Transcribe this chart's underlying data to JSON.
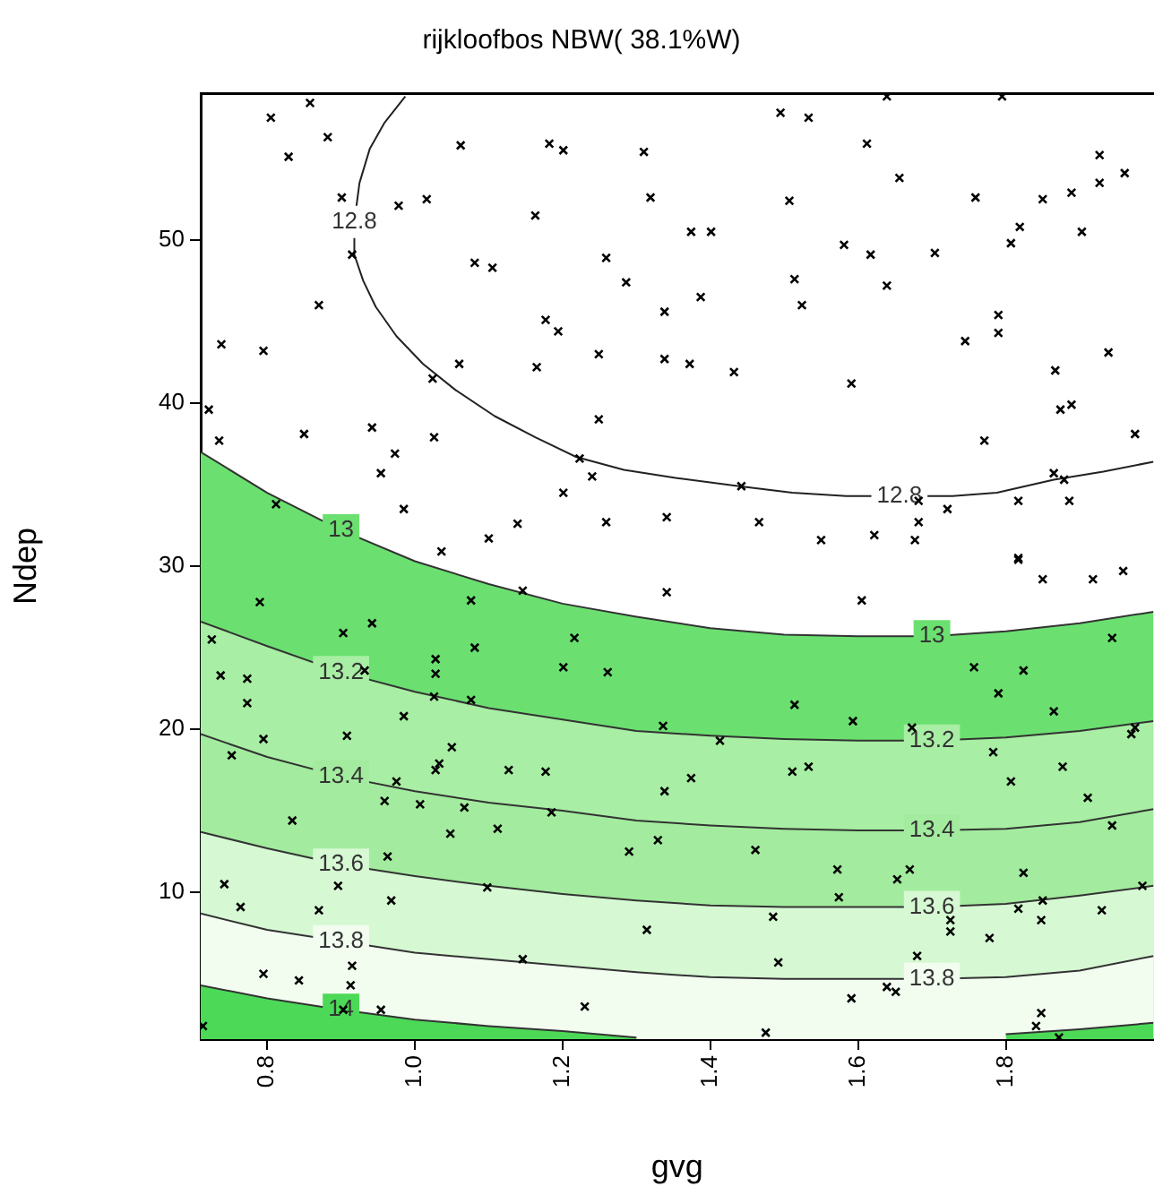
{
  "chart_data": {
    "type": "area",
    "title": "rijkloofbos NBW( 38.1%W)",
    "xlabel": "gvg",
    "ylabel": "Ndep",
    "xlim": [
      0.71,
      2.0
    ],
    "ylim": [
      1,
      59
    ],
    "xticks": [
      0.8,
      {
        "value": 1,
        "label": "1.0"
      },
      1.2,
      1.4,
      1.6,
      1.8
    ],
    "yticks": [
      10,
      20,
      30,
      40,
      50
    ],
    "grid": false,
    "legend": false,
    "x": [
      0.71,
      0.8,
      0.9,
      1.0,
      1.1,
      1.2,
      1.3,
      1.4,
      1.5,
      1.6,
      1.7,
      1.8,
      1.9,
      2.0
    ],
    "series": [
      {
        "name": "12.8",
        "type": "line",
        "color": "#222222",
        "x": [
          0.987,
          0.959,
          0.939,
          0.925,
          0.918,
          0.918,
          0.93,
          0.947,
          0.975,
          1.011,
          1.055,
          1.108,
          1.163,
          1.218,
          1.283,
          1.355,
          1.439,
          1.511,
          1.584,
          1.656,
          1.728,
          1.788,
          1.865,
          1.932,
          2.0
        ],
        "values": [
          58.8,
          57.2,
          55.6,
          53.5,
          51.1,
          49.1,
          47.5,
          45.9,
          44.1,
          42.4,
          40.8,
          39.2,
          37.9,
          36.7,
          35.9,
          35.4,
          34.9,
          34.5,
          34.3,
          34.3,
          34.3,
          34.5,
          35.3,
          35.8,
          36.4
        ]
      },
      {
        "name": "13",
        "color": "#6be070",
        "values": [
          37.0,
          34.5,
          32.2,
          30.3,
          28.9,
          27.7,
          26.9,
          26.2,
          25.8,
          25.7,
          25.7,
          26.0,
          26.5,
          27.2
        ]
      },
      {
        "name": "13.2",
        "color": "#a8eea4",
        "values": [
          26.6,
          25.1,
          23.5,
          22.3,
          21.3,
          20.6,
          19.9,
          19.6,
          19.4,
          19.3,
          19.3,
          19.5,
          19.9,
          20.5
        ]
      },
      {
        "name": "13.4",
        "color": "#a3ec9f",
        "values": [
          19.7,
          18.3,
          17.1,
          16.2,
          15.5,
          15.0,
          14.4,
          14.1,
          13.9,
          13.8,
          13.8,
          13.9,
          14.3,
          15.1
        ]
      },
      {
        "name": "13.6",
        "color": "#d6f9d3",
        "values": [
          13.7,
          12.7,
          11.7,
          11.0,
          10.4,
          9.9,
          9.5,
          9.2,
          9.1,
          9.1,
          9.1,
          9.3,
          9.8,
          10.4
        ]
      },
      {
        "name": "13.8",
        "color": "#f2fdf0",
        "values": [
          8.7,
          7.7,
          7.0,
          6.3,
          5.9,
          5.5,
          5.1,
          4.8,
          4.7,
          4.7,
          4.7,
          4.8,
          5.2,
          6.1
        ]
      },
      {
        "name": "14",
        "color": "#4cd957",
        "values": [
          4.3,
          3.5,
          2.8,
          2.2,
          1.8,
          1.5,
          1.1,
          null,
          null,
          null,
          null,
          1.3,
          1.6,
          2.0
        ]
      },
      {
        "type": "scatter",
        "color": "#000000",
        "marker": "cross",
        "x": [
          0.805,
          0.858,
          0.882,
          0.829,
          1.062,
          1.182,
          1.201,
          1.31,
          0.901,
          0.978,
          1.016,
          1.163,
          1.319,
          0.915,
          1.081,
          1.105,
          1.259,
          1.286,
          0.87,
          1.338,
          0.738,
          0.795,
          1.177,
          1.194,
          1.06,
          1.165,
          1.249,
          1.338,
          1.024,
          0.721,
          0.735,
          0.85,
          0.942,
          1.026,
          1.249,
          0.973,
          0.954,
          1.223,
          1.24,
          1.201,
          0.812,
          0.985,
          1.139,
          1.259,
          1.341,
          1.1,
          1.036,
          1.495,
          1.533,
          1.639,
          1.795,
          1.612,
          1.927,
          1.961,
          1.656,
          1.507,
          1.759,
          1.85,
          1.889,
          1.927,
          1.374,
          1.401,
          1.819,
          1.807,
          1.903,
          1.581,
          1.617,
          1.704,
          1.514,
          1.639,
          1.387,
          1.524,
          1.79,
          1.79,
          1.745,
          1.939,
          1.372,
          1.432,
          1.591,
          1.867,
          1.874,
          1.889,
          1.975,
          1.771,
          1.442,
          1.865,
          1.879,
          1.682,
          1.721,
          1.817,
          1.886,
          1.466,
          1.682,
          1.55,
          1.622,
          1.677,
          1.817,
          1.146,
          1.341,
          0.79,
          1.076,
          0.942,
          0.903,
          1.216,
          0.725,
          1.081,
          1.028,
          0.932,
          1.028,
          1.201,
          1.261,
          0.737,
          0.773,
          1.026,
          1.076,
          0.773,
          0.985,
          1.336,
          0.795,
          0.908,
          0.752,
          1.05,
          1.033,
          1.028,
          1.127,
          1.177,
          0.975,
          0.959,
          1.007,
          1.067,
          1.338,
          0.834,
          1.185,
          1.048,
          1.112,
          1.29,
          1.329,
          0.963,
          0.742,
          0.896,
          1.098,
          0.764,
          0.87,
          0.968,
          1.314,
          1.146,
          0.795,
          0.843,
          0.915,
          0.913,
          1.23,
          0.903,
          0.954,
          0.713,
          1.817,
          1.85,
          1.918,
          1.959,
          1.605,
          1.944,
          1.757,
          1.824,
          1.79,
          1.865,
          1.514,
          1.593,
          1.673,
          1.413,
          1.975,
          1.97,
          1.783,
          1.877,
          1.374,
          1.511,
          1.533,
          1.807,
          1.911,
          1.944,
          1.461,
          1.572,
          1.653,
          1.67,
          1.824,
          1.985,
          1.574,
          1.485,
          1.817,
          1.85,
          1.848,
          1.93,
          1.725,
          1.725,
          1.778,
          1.492,
          1.68,
          1.591,
          1.639,
          1.651,
          1.848,
          1.841,
          1.475,
          1.872
        ],
        "values": [
          57.5,
          58.4,
          56.3,
          55.1,
          55.8,
          55.9,
          55.5,
          55.4,
          52.6,
          52.1,
          52.5,
          51.5,
          52.6,
          49.1,
          48.6,
          48.3,
          48.9,
          47.4,
          46.0,
          45.6,
          43.6,
          43.2,
          45.1,
          44.4,
          42.4,
          42.2,
          43.0,
          42.7,
          41.5,
          39.6,
          37.7,
          38.1,
          38.5,
          37.9,
          39.0,
          36.9,
          35.7,
          36.6,
          35.5,
          34.5,
          33.8,
          33.5,
          32.6,
          32.7,
          33.0,
          31.7,
          30.9,
          57.8,
          57.5,
          58.8,
          58.8,
          55.9,
          55.2,
          54.1,
          53.8,
          52.4,
          52.6,
          52.5,
          52.9,
          53.5,
          50.5,
          50.5,
          50.8,
          49.8,
          50.5,
          49.7,
          49.1,
          49.2,
          47.6,
          47.2,
          46.5,
          46.0,
          45.4,
          44.3,
          43.8,
          43.1,
          42.4,
          41.9,
          41.2,
          42.0,
          39.6,
          39.9,
          38.1,
          37.7,
          34.9,
          35.7,
          35.3,
          34.0,
          33.5,
          34.0,
          34.0,
          32.7,
          32.7,
          31.6,
          31.9,
          31.6,
          30.5,
          28.5,
          28.4,
          27.8,
          27.9,
          26.5,
          25.9,
          25.6,
          25.5,
          25.0,
          24.3,
          23.6,
          23.4,
          23.8,
          23.5,
          23.3,
          23.1,
          22.0,
          21.8,
          21.6,
          20.8,
          20.2,
          19.4,
          19.6,
          18.4,
          18.9,
          17.9,
          17.5,
          17.5,
          17.4,
          16.8,
          15.6,
          15.4,
          15.2,
          16.2,
          14.4,
          14.9,
          13.6,
          13.9,
          12.5,
          13.2,
          12.2,
          10.5,
          10.4,
          10.3,
          9.1,
          8.9,
          9.5,
          7.7,
          5.9,
          5.0,
          4.6,
          5.5,
          4.3,
          3.0,
          2.8,
          2.8,
          1.8,
          30.4,
          29.2,
          29.2,
          29.7,
          27.9,
          25.6,
          23.8,
          23.6,
          22.2,
          21.1,
          21.5,
          20.5,
          20.1,
          19.3,
          20.1,
          19.7,
          18.6,
          17.7,
          17.0,
          17.4,
          17.7,
          16.8,
          15.8,
          14.1,
          12.6,
          11.4,
          10.8,
          11.4,
          11.2,
          10.4,
          9.7,
          8.5,
          9.0,
          9.5,
          8.3,
          8.9,
          8.3,
          7.6,
          7.2,
          5.7,
          6.1,
          3.5,
          4.2,
          3.9,
          2.6,
          1.8,
          1.4,
          1.1
        ]
      }
    ]
  }
}
